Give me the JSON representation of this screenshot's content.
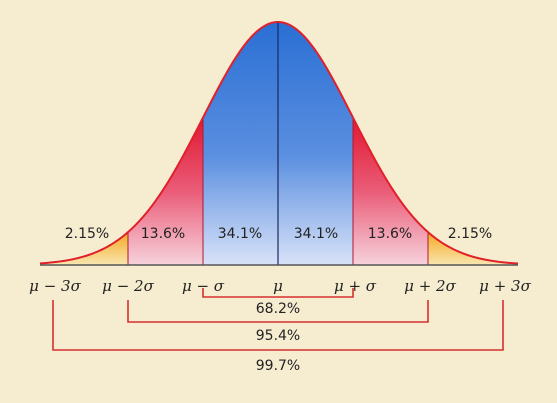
{
  "chart_data": {
    "type": "area",
    "region_percentages": [
      "2.15%",
      "13.6%",
      "34.1%",
      "34.1%",
      "13.6%",
      "2.15%"
    ],
    "tick_labels": [
      "μ − 3σ",
      "μ − 2σ",
      "μ − σ",
      "μ",
      "μ + σ",
      "μ + 2σ",
      "μ + 3σ"
    ],
    "brackets": [
      "68.2%",
      "95.4%",
      "99.7%"
    ],
    "x_sigma": [
      -3,
      -2,
      -1,
      0,
      1,
      2,
      3
    ],
    "colors": {
      "curve": "#e0202a",
      "blue_top": "#2a6fd4",
      "blue_bottom": "#d8e2f8",
      "red_top": "#e01830",
      "red_bottom": "#f6d2dc",
      "yellow": "#f5b830",
      "lines": "#d63030",
      "background": "#f6ecd0"
    }
  }
}
